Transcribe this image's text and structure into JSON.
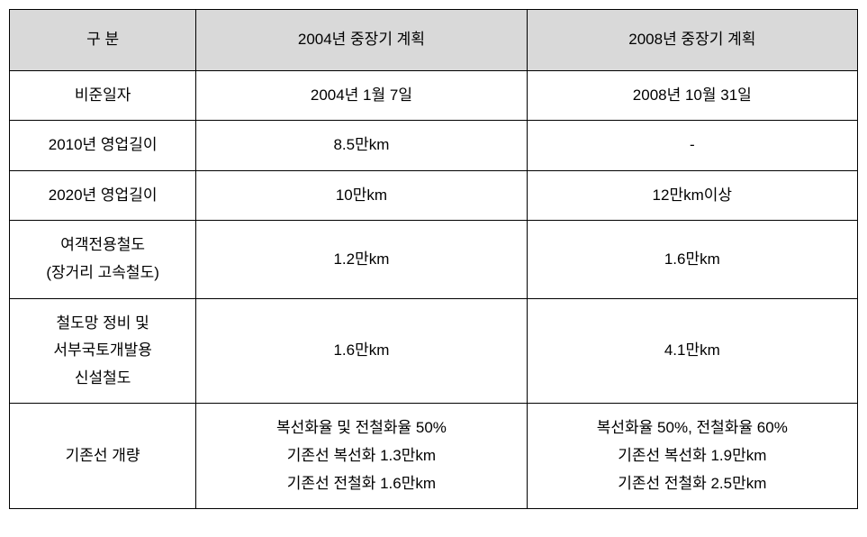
{
  "table": {
    "headers": {
      "category": "구   분",
      "plan2004": "2004년 중장기 계획",
      "plan2008": "2008년 중장기 계획"
    },
    "rows": [
      {
        "category": "비준일자",
        "plan2004": "2004년 1월 7일",
        "plan2008": "2008년 10월 31일"
      },
      {
        "category": "2010년 영업길이",
        "plan2004": "8.5만km",
        "plan2008": "-"
      },
      {
        "category": "2020년 영업길이",
        "plan2004": "10만km",
        "plan2008": "12만km이상"
      },
      {
        "category": "여객전용철도\n(장거리 고속철도)",
        "plan2004": "1.2만km",
        "plan2008": "1.6만km"
      },
      {
        "category": "철도망 정비 및\n서부국토개발용\n신설철도",
        "plan2004": "1.6만km",
        "plan2008": "4.1만km"
      },
      {
        "category": "기존선 개량",
        "plan2004": "복선화율 및 전철화율 50%\n기존선 복선화 1.3만km\n기존선 전철화 1.6만km",
        "plan2008": "복선화율 50%, 전철화율 60%\n기존선 복선화 1.9만km\n기존선 전철화 2.5만km"
      }
    ],
    "styling": {
      "header_bg_color": "#d9d9d9",
      "border_color": "#000000",
      "bg_color": "#ffffff",
      "font_size": 17,
      "col_widths": [
        "22%",
        "39%",
        "39%"
      ]
    }
  }
}
